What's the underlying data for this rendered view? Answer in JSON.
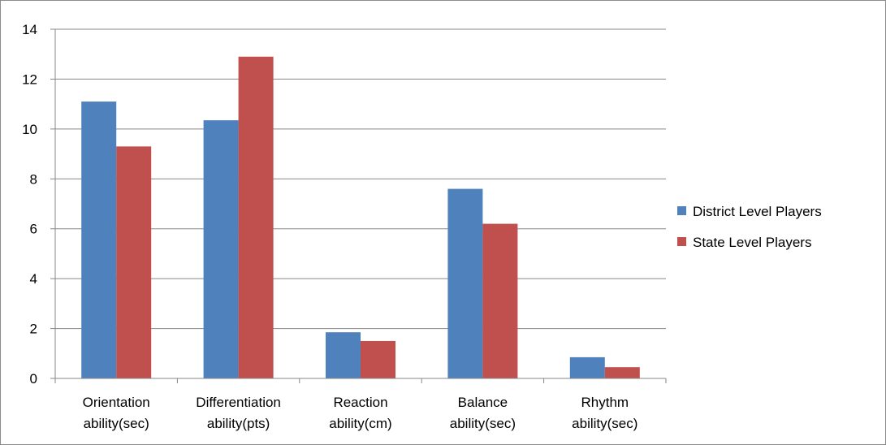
{
  "chart_data": {
    "type": "bar",
    "categories": [
      [
        "Orientation",
        "ability(sec)"
      ],
      [
        "Differentiation",
        "ability(pts)"
      ],
      [
        "Reaction",
        "ability(cm)"
      ],
      [
        "Balance",
        "ability(sec)"
      ],
      [
        "Rhythm",
        "ability(sec)"
      ]
    ],
    "series": [
      {
        "name": "District Level Players",
        "color": "#4f81bd",
        "values": [
          11.1,
          10.35,
          1.85,
          7.6,
          0.85
        ]
      },
      {
        "name": "State Level Players",
        "color": "#c0504d",
        "values": [
          9.3,
          12.9,
          1.5,
          6.2,
          0.45
        ]
      }
    ],
    "yticks": [
      0,
      2,
      4,
      6,
      8,
      10,
      12,
      14
    ],
    "ylim": [
      0,
      14
    ],
    "grid": true,
    "legend": "right"
  }
}
